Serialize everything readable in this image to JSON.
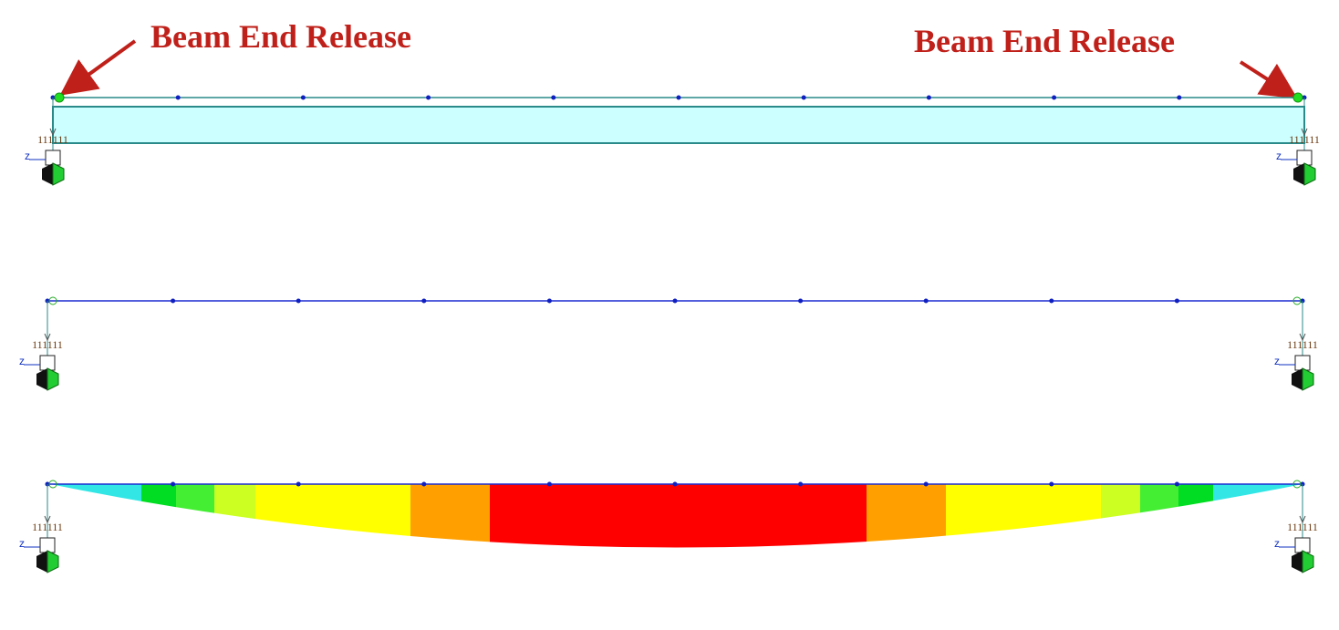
{
  "annotations": [
    {
      "text": "Beam End Release"
    },
    {
      "text": "Beam End Release"
    }
  ],
  "views": [
    {
      "supports": [
        {
          "label": "111111",
          "axis": "z"
        },
        {
          "label": "111111",
          "axis": "z"
        }
      ]
    },
    {
      "supports": [
        {
          "label": "111111",
          "axis": "z"
        },
        {
          "label": "111111",
          "axis": "z"
        }
      ]
    },
    {
      "supports": [
        {
          "label": "111111",
          "axis": "z"
        },
        {
          "label": "111111",
          "axis": "z"
        }
      ]
    }
  ]
}
